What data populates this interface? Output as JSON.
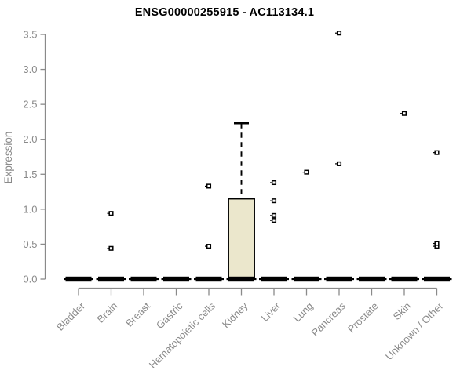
{
  "page": {
    "background": "#ffffff"
  },
  "chart_data": {
    "type": "boxplot",
    "title": "ENSG00000255915 - AC113134.1",
    "ylabel": "Expression",
    "xlabel": "",
    "ylim": [
      0,
      3.5
    ],
    "ytick_step": 0.5,
    "yticks": [
      "0.0",
      "0.5",
      "1.0",
      "1.5",
      "2.0",
      "2.5",
      "3.0",
      "3.5"
    ],
    "grid": "off",
    "legend": "none",
    "categories": [
      "Bladder",
      "Brain",
      "Breast",
      "Gastric",
      "Hematopoietic cells",
      "Kidney",
      "Liver",
      "Lung",
      "Pancreas",
      "Prostate",
      "Skin",
      "Unknown / Other"
    ],
    "boxes": [
      {
        "category": "Bladder",
        "q1": 0,
        "median": 0,
        "q3": 0,
        "whisker_low": 0,
        "whisker_high": 0,
        "outliers": []
      },
      {
        "category": "Brain",
        "q1": 0,
        "median": 0,
        "q3": 0,
        "whisker_low": 0,
        "whisker_high": 0,
        "outliers": [
          0.44,
          0.94
        ]
      },
      {
        "category": "Breast",
        "q1": 0,
        "median": 0,
        "q3": 0,
        "whisker_low": 0,
        "whisker_high": 0,
        "outliers": []
      },
      {
        "category": "Gastric",
        "q1": 0,
        "median": 0,
        "q3": 0,
        "whisker_low": 0,
        "whisker_high": 0,
        "outliers": []
      },
      {
        "category": "Hematopoietic cells",
        "q1": 0,
        "median": 0,
        "q3": 0,
        "whisker_low": 0,
        "whisker_high": 0,
        "outliers": [
          0.47,
          1.33
        ]
      },
      {
        "category": "Kidney",
        "q1": 0,
        "median": 0,
        "q3": 1.15,
        "whisker_low": 0,
        "whisker_high": 2.23,
        "outliers": []
      },
      {
        "category": "Liver",
        "q1": 0,
        "median": 0,
        "q3": 0,
        "whisker_low": 0,
        "whisker_high": 0,
        "outliers": [
          0.84,
          0.91,
          1.12,
          1.38
        ]
      },
      {
        "category": "Lung",
        "q1": 0,
        "median": 0,
        "q3": 0,
        "whisker_low": 0,
        "whisker_high": 0,
        "outliers": [
          1.53
        ]
      },
      {
        "category": "Pancreas",
        "q1": 0,
        "median": 0,
        "q3": 0,
        "whisker_low": 0,
        "whisker_high": 0,
        "outliers": [
          1.65,
          3.52
        ]
      },
      {
        "category": "Prostate",
        "q1": 0,
        "median": 0,
        "q3": 0,
        "whisker_low": 0,
        "whisker_high": 0,
        "outliers": []
      },
      {
        "category": "Skin",
        "q1": 0,
        "median": 0,
        "q3": 0,
        "whisker_low": 0,
        "whisker_high": 0,
        "outliers": [
          2.37
        ]
      },
      {
        "category": "Unknown / Other",
        "q1": 0,
        "median": 0,
        "q3": 0,
        "whisker_low": 0,
        "whisker_high": 0,
        "outliers": [
          0.47,
          0.51,
          1.81
        ]
      }
    ],
    "style": {
      "box_fill": "#ebe7cc",
      "box_stroke": "#000000",
      "median_color": "#000000",
      "axis_color": "#8a8a8a",
      "title_color": "#000000",
      "outlier_marker": "open-square",
      "whisker_style": "dashed"
    }
  }
}
